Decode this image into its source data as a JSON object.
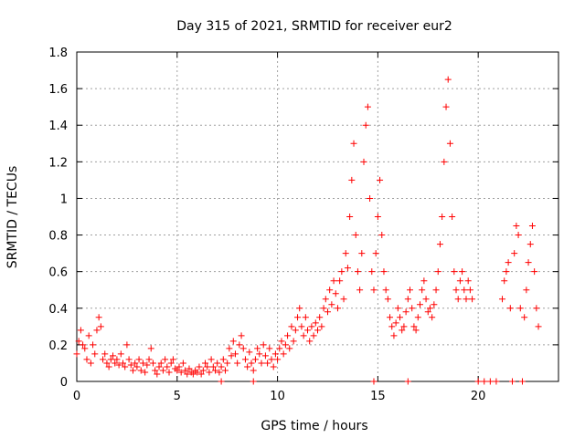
{
  "chart_data": {
    "type": "scatter",
    "title": "Day 315 of 2021, SRMTID for receiver eur2",
    "xlabel": "GPS time / hours",
    "ylabel": "SRMTID / TECUs",
    "xlim": [
      0,
      24
    ],
    "ylim": [
      0,
      1.8
    ],
    "x_ticks": [
      0,
      5,
      10,
      15,
      20
    ],
    "x_tick_labels": [
      "0",
      "5",
      "10",
      "15",
      "20"
    ],
    "y_ticks": [
      0,
      0.2,
      0.4,
      0.6,
      0.8,
      1.0,
      1.2,
      1.4,
      1.6,
      1.8
    ],
    "y_tick_labels": [
      "0",
      "0.2",
      "0.4",
      "0.6",
      "0.8",
      "1",
      "1.2",
      "1.4",
      "1.6",
      "1.8"
    ],
    "grid": true,
    "marker": "+",
    "series": [
      {
        "name": "SRMTID",
        "color": "#ff0000",
        "marker": "+",
        "points": [
          [
            0.0,
            0.15
          ],
          [
            0.1,
            0.22
          ],
          [
            0.2,
            0.28
          ],
          [
            0.3,
            0.2
          ],
          [
            0.4,
            0.18
          ],
          [
            0.5,
            0.12
          ],
          [
            0.6,
            0.25
          ],
          [
            0.7,
            0.1
          ],
          [
            0.8,
            0.2
          ],
          [
            0.9,
            0.15
          ],
          [
            1.0,
            0.28
          ],
          [
            1.1,
            0.35
          ],
          [
            1.2,
            0.3
          ],
          [
            1.3,
            0.12
          ],
          [
            1.4,
            0.15
          ],
          [
            1.5,
            0.1
          ],
          [
            1.6,
            0.08
          ],
          [
            1.7,
            0.12
          ],
          [
            1.8,
            0.14
          ],
          [
            1.9,
            0.1
          ],
          [
            2.0,
            0.12
          ],
          [
            2.1,
            0.09
          ],
          [
            2.2,
            0.15
          ],
          [
            2.3,
            0.1
          ],
          [
            2.4,
            0.08
          ],
          [
            2.5,
            0.2
          ],
          [
            2.6,
            0.12
          ],
          [
            2.7,
            0.09
          ],
          [
            2.8,
            0.06
          ],
          [
            2.9,
            0.1
          ],
          [
            3.0,
            0.08
          ],
          [
            3.1,
            0.12
          ],
          [
            3.2,
            0.06
          ],
          [
            3.3,
            0.1
          ],
          [
            3.4,
            0.05
          ],
          [
            3.5,
            0.09
          ],
          [
            3.6,
            0.12
          ],
          [
            3.7,
            0.18
          ],
          [
            3.8,
            0.1
          ],
          [
            3.9,
            0.06
          ],
          [
            4.0,
            0.04
          ],
          [
            4.1,
            0.08
          ],
          [
            4.2,
            0.1
          ],
          [
            4.3,
            0.06
          ],
          [
            4.4,
            0.12
          ],
          [
            4.5,
            0.08
          ],
          [
            4.6,
            0.05
          ],
          [
            4.7,
            0.1
          ],
          [
            4.8,
            0.12
          ],
          [
            4.9,
            0.07
          ],
          [
            5.0,
            0.06
          ],
          [
            5.1,
            0.08
          ],
          [
            5.2,
            0.05
          ],
          [
            5.3,
            0.1
          ],
          [
            5.4,
            0.06
          ],
          [
            5.5,
            0.04
          ],
          [
            5.6,
            0.07
          ],
          [
            5.7,
            0.05
          ],
          [
            5.8,
            0.04
          ],
          [
            5.9,
            0.06
          ],
          [
            6.0,
            0.05
          ],
          [
            6.1,
            0.08
          ],
          [
            6.2,
            0.04
          ],
          [
            6.3,
            0.06
          ],
          [
            6.4,
            0.1
          ],
          [
            6.5,
            0.08
          ],
          [
            6.6,
            0.05
          ],
          [
            6.7,
            0.12
          ],
          [
            6.8,
            0.08
          ],
          [
            6.9,
            0.06
          ],
          [
            7.0,
            0.1
          ],
          [
            7.1,
            0.05
          ],
          [
            7.2,
            0.08
          ],
          [
            7.3,
            0.12
          ],
          [
            7.4,
            0.06
          ],
          [
            7.5,
            0.1
          ],
          [
            7.6,
            0.18
          ],
          [
            7.7,
            0.14
          ],
          [
            7.8,
            0.22
          ],
          [
            7.9,
            0.15
          ],
          [
            8.0,
            0.1
          ],
          [
            8.1,
            0.2
          ],
          [
            8.2,
            0.25
          ],
          [
            8.3,
            0.18
          ],
          [
            8.4,
            0.12
          ],
          [
            8.5,
            0.08
          ],
          [
            8.6,
            0.16
          ],
          [
            8.7,
            0.1
          ],
          [
            8.8,
            0.06
          ],
          [
            8.9,
            0.12
          ],
          [
            9.0,
            0.18
          ],
          [
            9.1,
            0.15
          ],
          [
            9.2,
            0.1
          ],
          [
            9.3,
            0.2
          ],
          [
            9.4,
            0.14
          ],
          [
            9.5,
            0.1
          ],
          [
            9.6,
            0.18
          ],
          [
            9.7,
            0.12
          ],
          [
            9.8,
            0.08
          ],
          [
            9.9,
            0.15
          ],
          [
            10.0,
            0.12
          ],
          [
            10.1,
            0.18
          ],
          [
            10.2,
            0.22
          ],
          [
            10.3,
            0.15
          ],
          [
            10.4,
            0.2
          ],
          [
            10.5,
            0.25
          ],
          [
            10.6,
            0.18
          ],
          [
            10.7,
            0.3
          ],
          [
            10.8,
            0.22
          ],
          [
            10.9,
            0.28
          ],
          [
            11.0,
            0.35
          ],
          [
            11.1,
            0.4
          ],
          [
            11.2,
            0.3
          ],
          [
            11.3,
            0.25
          ],
          [
            11.4,
            0.35
          ],
          [
            11.5,
            0.28
          ],
          [
            11.6,
            0.22
          ],
          [
            11.7,
            0.3
          ],
          [
            11.8,
            0.25
          ],
          [
            11.9,
            0.32
          ],
          [
            12.0,
            0.28
          ],
          [
            12.1,
            0.35
          ],
          [
            12.2,
            0.3
          ],
          [
            12.3,
            0.4
          ],
          [
            12.4,
            0.45
          ],
          [
            12.5,
            0.38
          ],
          [
            12.6,
            0.5
          ],
          [
            12.7,
            0.42
          ],
          [
            12.8,
            0.55
          ],
          [
            12.9,
            0.48
          ],
          [
            13.0,
            0.4
          ],
          [
            13.1,
            0.55
          ],
          [
            13.2,
            0.6
          ],
          [
            13.3,
            0.45
          ],
          [
            13.4,
            0.7
          ],
          [
            13.5,
            0.62
          ],
          [
            13.6,
            0.9
          ],
          [
            13.7,
            1.1
          ],
          [
            13.8,
            1.3
          ],
          [
            13.9,
            0.8
          ],
          [
            14.0,
            0.6
          ],
          [
            14.1,
            0.5
          ],
          [
            14.2,
            0.7
          ],
          [
            14.3,
            1.2
          ],
          [
            14.4,
            1.4
          ],
          [
            14.5,
            1.5
          ],
          [
            14.6,
            1.0
          ],
          [
            14.7,
            0.6
          ],
          [
            14.8,
            0.5
          ],
          [
            14.9,
            0.7
          ],
          [
            15.0,
            0.9
          ],
          [
            15.1,
            1.1
          ],
          [
            15.2,
            0.8
          ],
          [
            15.3,
            0.6
          ],
          [
            15.4,
            0.5
          ],
          [
            15.5,
            0.45
          ],
          [
            15.6,
            0.35
          ],
          [
            15.7,
            0.3
          ],
          [
            15.8,
            0.25
          ],
          [
            15.9,
            0.32
          ],
          [
            16.0,
            0.4
          ],
          [
            16.1,
            0.35
          ],
          [
            16.2,
            0.28
          ],
          [
            16.3,
            0.3
          ],
          [
            16.4,
            0.38
          ],
          [
            16.5,
            0.45
          ],
          [
            16.6,
            0.5
          ],
          [
            16.7,
            0.4
          ],
          [
            16.8,
            0.3
          ],
          [
            16.9,
            0.28
          ],
          [
            17.0,
            0.35
          ],
          [
            17.1,
            0.42
          ],
          [
            17.2,
            0.5
          ],
          [
            17.3,
            0.55
          ],
          [
            17.4,
            0.45
          ],
          [
            17.5,
            0.38
          ],
          [
            17.6,
            0.4
          ],
          [
            17.7,
            0.35
          ],
          [
            17.8,
            0.42
          ],
          [
            17.9,
            0.5
          ],
          [
            18.0,
            0.6
          ],
          [
            18.1,
            0.75
          ],
          [
            18.2,
            0.9
          ],
          [
            18.3,
            1.2
          ],
          [
            18.4,
            1.5
          ],
          [
            18.5,
            1.65
          ],
          [
            18.6,
            1.3
          ],
          [
            18.7,
            0.9
          ],
          [
            18.8,
            0.6
          ],
          [
            18.9,
            0.5
          ],
          [
            19.0,
            0.45
          ],
          [
            19.1,
            0.55
          ],
          [
            19.2,
            0.6
          ],
          [
            19.3,
            0.5
          ],
          [
            19.4,
            0.45
          ],
          [
            19.5,
            0.55
          ],
          [
            19.6,
            0.5
          ],
          [
            19.7,
            0.45
          ],
          [
            20.0,
            0.0
          ],
          [
            20.3,
            0.0
          ],
          [
            20.6,
            0.0
          ],
          [
            20.9,
            0.0
          ],
          [
            21.2,
            0.45
          ],
          [
            21.3,
            0.55
          ],
          [
            21.4,
            0.6
          ],
          [
            21.5,
            0.65
          ],
          [
            21.6,
            0.4
          ],
          [
            21.7,
            0.0
          ],
          [
            21.8,
            0.7
          ],
          [
            21.9,
            0.85
          ],
          [
            22.0,
            0.8
          ],
          [
            22.1,
            0.4
          ],
          [
            22.2,
            0.0
          ],
          [
            22.3,
            0.35
          ],
          [
            22.4,
            0.5
          ],
          [
            22.5,
            0.65
          ],
          [
            22.6,
            0.75
          ],
          [
            22.7,
            0.85
          ],
          [
            22.8,
            0.6
          ],
          [
            22.9,
            0.4
          ],
          [
            23.0,
            0.3
          ],
          [
            14.8,
            0.0
          ],
          [
            16.5,
            0.0
          ],
          [
            7.2,
            0.0
          ],
          [
            8.8,
            0.0
          ]
        ]
      }
    ]
  }
}
